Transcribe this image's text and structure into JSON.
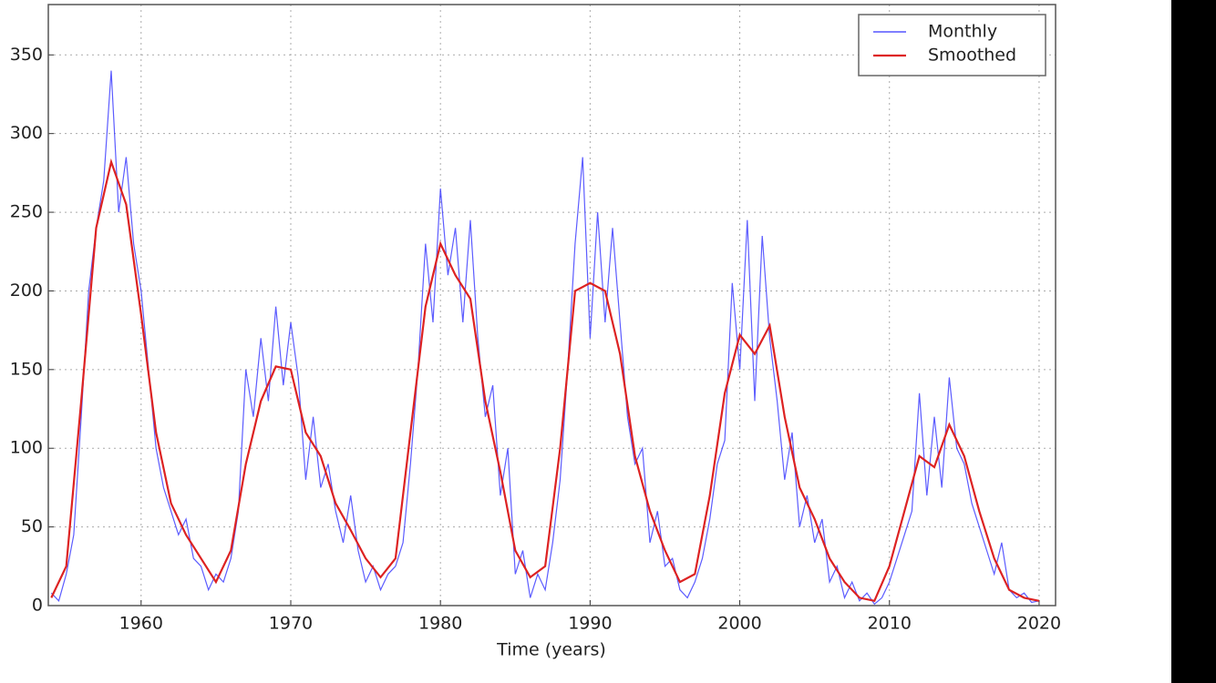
{
  "chart_data": {
    "type": "line",
    "xlabel": "Time (years)",
    "xlim": [
      1953.8,
      2021.1
    ],
    "ylim": [
      0,
      382
    ],
    "xticks": [
      1960,
      1970,
      1980,
      1990,
      2000,
      2010,
      2020
    ],
    "yticks": [
      0,
      50,
      100,
      150,
      200,
      250,
      300,
      350
    ],
    "grid": true,
    "legend": "upper right",
    "series": [
      {
        "name": "Monthly",
        "color": "#3333ff",
        "x": [
          1954,
          1954.5,
          1955,
          1955.5,
          1956,
          1956.5,
          1957,
          1957.5,
          1958,
          1958.5,
          1959,
          1959.5,
          1960,
          1960.5,
          1961,
          1961.5,
          1962,
          1962.5,
          1963,
          1963.5,
          1964,
          1964.5,
          1965,
          1965.5,
          1966,
          1966.5,
          1967,
          1967.5,
          1968,
          1968.5,
          1969,
          1969.5,
          1970,
          1970.5,
          1971,
          1971.5,
          1972,
          1972.5,
          1973,
          1973.5,
          1974,
          1974.5,
          1975,
          1975.5,
          1976,
          1976.5,
          1977,
          1977.5,
          1978,
          1978.5,
          1979,
          1979.5,
          1980,
          1980.5,
          1981,
          1981.5,
          1982,
          1982.5,
          1983,
          1983.5,
          1984,
          1984.5,
          1985,
          1985.5,
          1986,
          1986.5,
          1987,
          1987.5,
          1988,
          1988.5,
          1989,
          1989.5,
          1990,
          1990.5,
          1991,
          1991.5,
          1992,
          1992.5,
          1993,
          1993.5,
          1994,
          1994.5,
          1995,
          1995.5,
          1996,
          1996.5,
          1997,
          1997.5,
          1998,
          1998.5,
          1999,
          1999.5,
          2000,
          2000.5,
          2001,
          2001.5,
          2002,
          2002.5,
          2003,
          2003.5,
          2004,
          2004.5,
          2005,
          2005.5,
          2006,
          2006.5,
          2007,
          2007.5,
          2008,
          2008.5,
          2009,
          2009.5,
          2010,
          2010.5,
          2011,
          2011.5,
          2012,
          2012.5,
          2013,
          2013.5,
          2014,
          2014.5,
          2015,
          2015.5,
          2016,
          2016.5,
          2017,
          2017.5,
          2018,
          2018.5,
          2019,
          2019.5,
          2020
        ],
        "values": [
          8,
          3,
          20,
          45,
          120,
          200,
          240,
          270,
          340,
          250,
          285,
          230,
          200,
          150,
          100,
          75,
          60,
          45,
          55,
          30,
          25,
          10,
          20,
          15,
          30,
          60,
          150,
          120,
          170,
          130,
          190,
          140,
          180,
          145,
          80,
          120,
          75,
          90,
          60,
          40,
          70,
          35,
          15,
          25,
          10,
          20,
          25,
          40,
          90,
          150,
          230,
          180,
          265,
          210,
          240,
          180,
          245,
          170,
          120,
          140,
          70,
          100,
          20,
          35,
          5,
          20,
          10,
          40,
          80,
          150,
          230,
          285,
          170,
          250,
          180,
          240,
          180,
          120,
          90,
          100,
          40,
          60,
          25,
          30,
          10,
          5,
          15,
          30,
          55,
          90,
          105,
          205,
          150,
          245,
          130,
          235,
          170,
          130,
          80,
          110,
          50,
          70,
          40,
          55,
          15,
          25,
          5,
          15,
          3,
          8,
          1,
          5,
          15,
          30,
          45,
          60,
          135,
          70,
          120,
          75,
          145,
          100,
          90,
          65,
          50,
          35,
          20,
          40,
          10,
          5,
          8,
          2,
          3
        ]
      },
      {
        "name": "Smoothed",
        "color": "#dd2222",
        "x": [
          1954,
          1955,
          1956,
          1957,
          1958,
          1959,
          1960,
          1961,
          1962,
          1963,
          1964,
          1965,
          1966,
          1967,
          1968,
          1969,
          1970,
          1971,
          1972,
          1973,
          1974,
          1975,
          1976,
          1977,
          1978,
          1979,
          1980,
          1981,
          1982,
          1983,
          1984,
          1985,
          1986,
          1987,
          1988,
          1989,
          1990,
          1991,
          1992,
          1993,
          1994,
          1995,
          1996,
          1997,
          1998,
          1999,
          2000,
          2001,
          2002,
          2003,
          2004,
          2005,
          2006,
          2007,
          2008,
          2009,
          2010,
          2011,
          2012,
          2013,
          2014,
          2015,
          2016,
          2017,
          2018,
          2019,
          2020
        ],
        "values": [
          5,
          25,
          130,
          240,
          282,
          255,
          185,
          110,
          65,
          45,
          30,
          15,
          35,
          90,
          130,
          152,
          150,
          110,
          95,
          65,
          48,
          30,
          18,
          30,
          110,
          190,
          230,
          210,
          195,
          130,
          85,
          35,
          18,
          25,
          100,
          200,
          205,
          200,
          160,
          95,
          60,
          35,
          15,
          20,
          70,
          135,
          172,
          160,
          178,
          120,
          75,
          55,
          30,
          15,
          5,
          3,
          25,
          60,
          95,
          88,
          115,
          95,
          60,
          30,
          10,
          5,
          3
        ]
      }
    ]
  }
}
